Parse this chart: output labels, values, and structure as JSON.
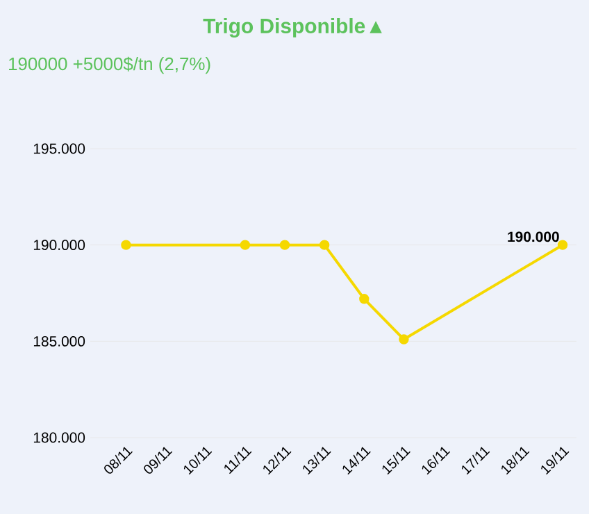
{
  "chart_data": {
    "type": "line",
    "title": "Trigo Disponible▲",
    "subtitle": "190000 +5000$/tn (2,7%)",
    "categories": [
      "08/11",
      "09/11",
      "10/11",
      "11/11",
      "12/11",
      "13/11",
      "14/11",
      "15/11",
      "16/11",
      "17/11",
      "18/11",
      "19/11"
    ],
    "series": [
      {
        "color": "#f5d800",
        "values": [
          190000,
          null,
          null,
          190000,
          190000,
          190000,
          187200,
          185100,
          null,
          null,
          null,
          190000
        ],
        "value_labels": [
          null,
          null,
          null,
          null,
          null,
          null,
          null,
          null,
          null,
          null,
          null,
          "190.000"
        ]
      }
    ],
    "ylim": [
      180000,
      195000
    ],
    "yticks": [
      {
        "value": 180000,
        "label": "180.000"
      },
      {
        "value": 185000,
        "label": "185.000"
      },
      {
        "value": 190000,
        "label": "190.000"
      },
      {
        "value": 195000,
        "label": "195.000"
      }
    ],
    "grid": "y",
    "marker": "circle"
  }
}
